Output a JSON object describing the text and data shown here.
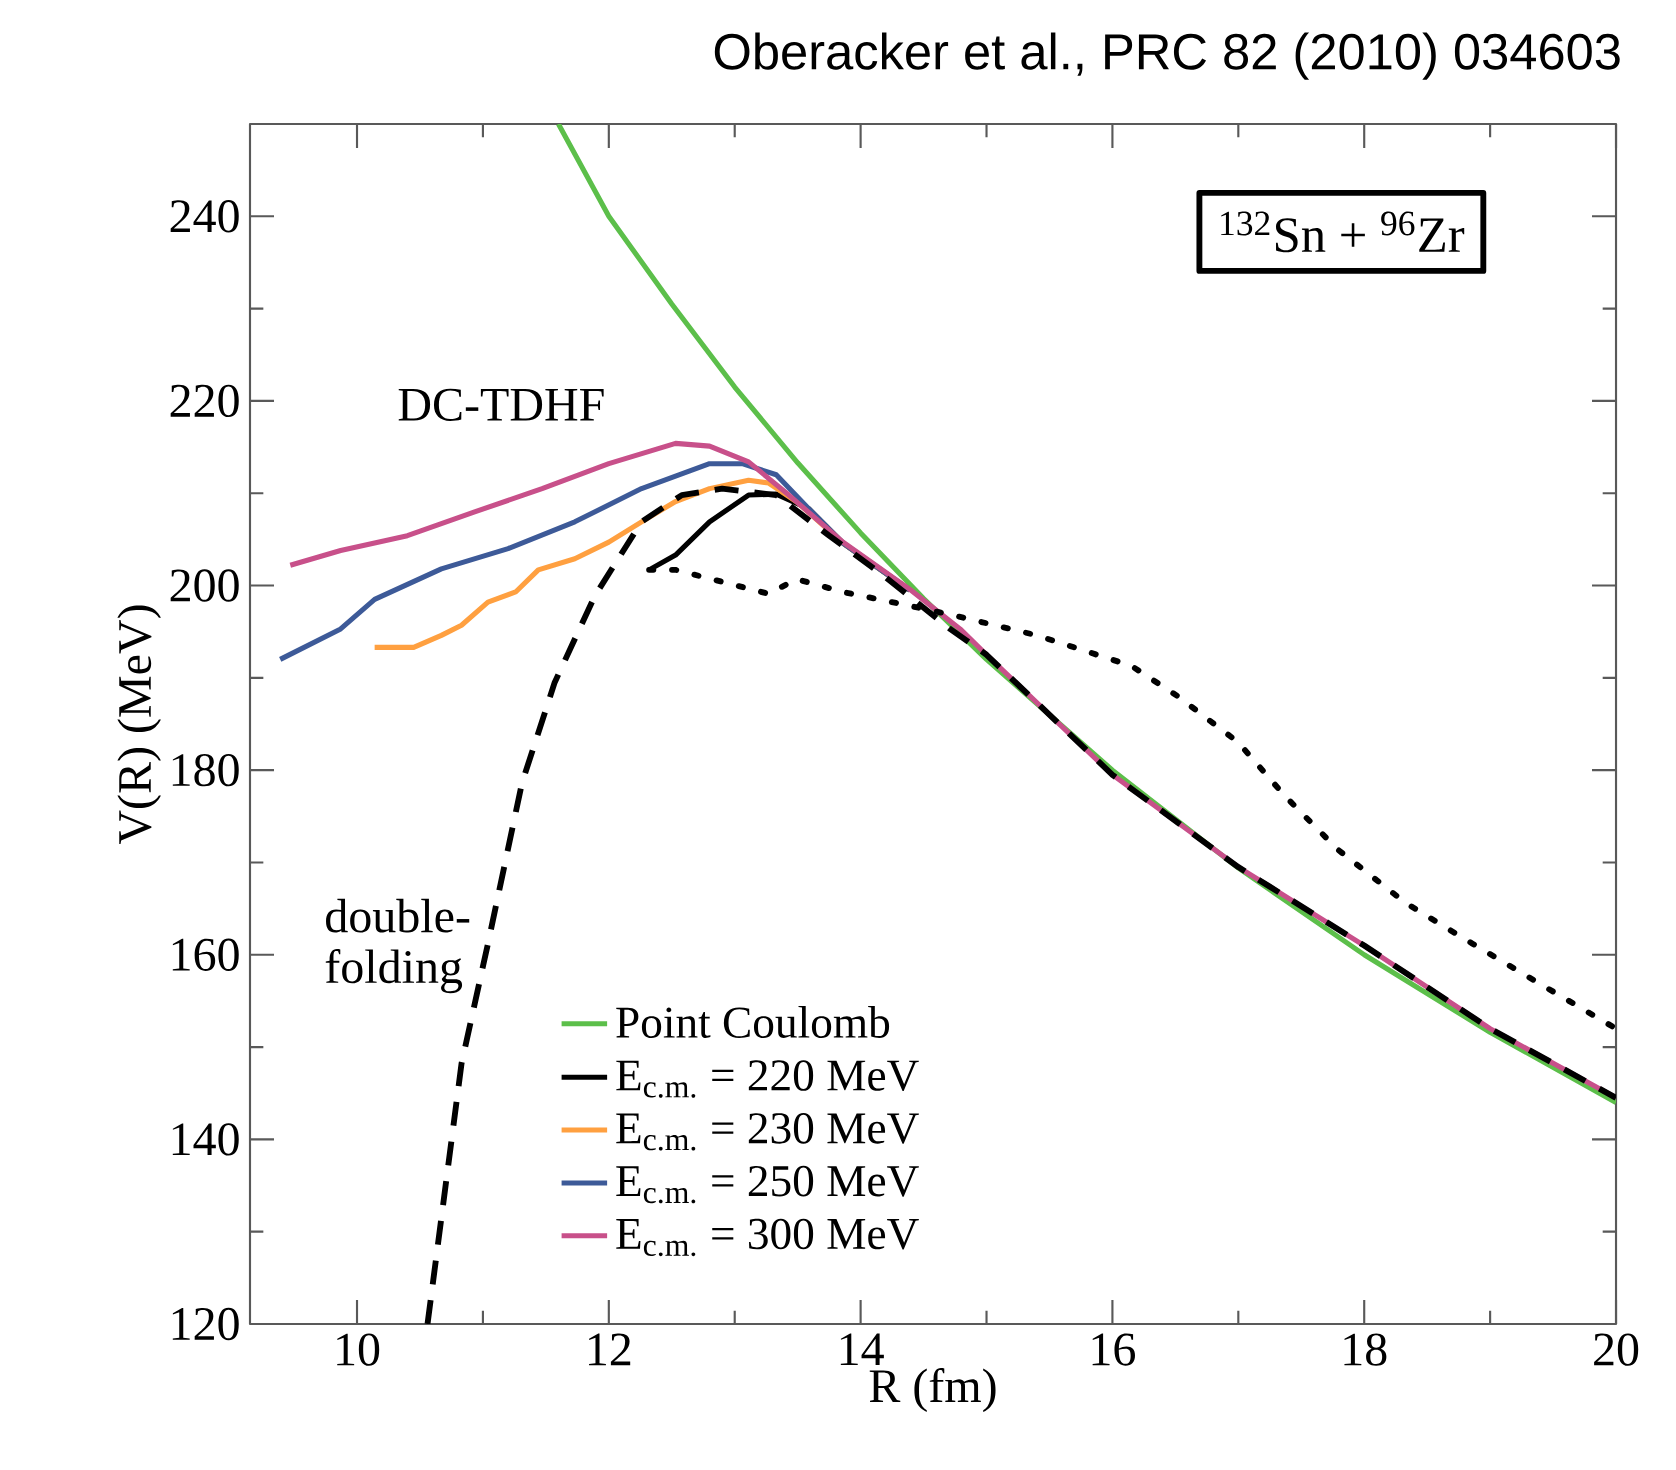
{
  "chart_data": {
    "type": "line",
    "title": "Oberacker et al., PRC 82 (2010) 034603",
    "xlabel": "R (fm)",
    "ylabel": "V(R) (MeV)",
    "xlim": [
      9.15,
      20
    ],
    "ylim": [
      120,
      250
    ],
    "xticks": [
      10,
      {
        "value": 11,
        "label": null
      },
      12,
      {
        "value": 13,
        "label": null
      },
      14,
      {
        "value": 15,
        "label": null
      },
      16,
      {
        "value": 17,
        "label": null
      },
      18,
      {
        "value": 19,
        "label": null
      },
      20
    ],
    "yticks": [
      120,
      {
        "value": 130,
        "label": null
      },
      140,
      {
        "value": 150,
        "label": null
      },
      160,
      {
        "value": 170,
        "label": null
      },
      180,
      {
        "value": 190,
        "label": null
      },
      200,
      {
        "value": 210,
        "label": null
      },
      220,
      {
        "value": 230,
        "label": null
      },
      240
    ],
    "grid": false,
    "legend": "bottom",
    "marker": "none",
    "annotations": [
      "$^{132}$Sn + $^{96}$Zr",
      "DC-TDHF",
      "double-folding"
    ],
    "series": [
      {
        "name": "Point Coulomb",
        "color": "#5cbf4a",
        "line_style": "solid",
        "x": [
          11.6,
          12,
          12.5,
          13,
          13.5,
          14,
          14.5,
          15,
          16,
          17,
          18,
          19,
          20
        ],
        "values": [
          250,
          240,
          230.5,
          221.5,
          213.3,
          205.7,
          198.6,
          192,
          180,
          169.4,
          160,
          151.6,
          144
        ]
      },
      {
        "name": "E$_{c.m.}$ = 220 MeV",
        "color": "#000000",
        "line_style": "solid",
        "x": [
          12.32,
          12.53,
          12.8,
          13.11,
          13.33,
          13.59,
          13.86,
          14.39
        ],
        "values": [
          201.7,
          203.3,
          206.9,
          209.8,
          209.9,
          208.3,
          204.6,
          199.5
        ]
      },
      {
        "name": "E$_{c.m.}$ = 230 MeV",
        "color": "#ffa040",
        "line_style": "solid",
        "x": [
          10.14,
          10.45,
          10.67,
          10.83,
          11.04,
          11.26,
          11.44,
          11.73,
          12,
          12.26,
          12.53,
          12.8,
          13.11,
          13.27,
          13.49,
          13.86,
          14.39
        ],
        "values": [
          193.3,
          193.3,
          194.6,
          195.7,
          198.2,
          199.3,
          201.7,
          202.9,
          204.7,
          206.9,
          209.1,
          210.5,
          211.4,
          211.1,
          209.1,
          204.6,
          199.5
        ]
      },
      {
        "name": "E$_{c.m.}$ = 250 MeV",
        "color": "#3d5a98",
        "line_style": "solid",
        "x": [
          9.39,
          9.87,
          10.14,
          10.67,
          11.2,
          11.73,
          12.26,
          12.8,
          13.06,
          13.33,
          13.59,
          13.86,
          14.39
        ],
        "values": [
          192,
          195.3,
          198.5,
          201.8,
          204,
          206.9,
          210.5,
          213.2,
          213.2,
          212,
          208.3,
          204.6,
          199.5
        ]
      },
      {
        "name": "E$_{c.m.}$ = 300 MeV",
        "color": "#c8508a",
        "line_style": "solid",
        "x": [
          9.47,
          9.87,
          10.4,
          10.94,
          11.47,
          12,
          12.53,
          12.8,
          13.11,
          13.43,
          13.86,
          14.39,
          14.79,
          15,
          16,
          17,
          18,
          19,
          20
        ],
        "values": [
          202.2,
          203.8,
          205.4,
          208,
          210.5,
          213.2,
          215.4,
          215.1,
          213.4,
          209.8,
          204.7,
          199.6,
          195.3,
          192.5,
          179.5,
          169.5,
          161,
          152,
          144.5
        ]
      },
      {
        "color": "#000000",
        "line_style": "dashed",
        "x": [
          10.56,
          10.83,
          11.04,
          11.31,
          11.57,
          11.89,
          12.26,
          12.58,
          12.9,
          13.33,
          13.75,
          14.18,
          14.71,
          15,
          16,
          17,
          18,
          19,
          20
        ],
        "values": [
          120,
          148.2,
          161.2,
          178.6,
          189.5,
          198.9,
          206.9,
          209.8,
          210.5,
          209.8,
          205.4,
          201.1,
          195.3,
          192.5,
          179.5,
          169.5,
          161,
          152,
          144.5
        ]
      },
      {
        "color": "#000000",
        "line_style": "dotted",
        "x": [
          12.32,
          12.53,
          12.9,
          13.27,
          13.49,
          13.86,
          14.39,
          14.76,
          15.4,
          16.15,
          16.52,
          17,
          17.37,
          17.79,
          18.33,
          18.86,
          19.39,
          20
        ],
        "values": [
          201.7,
          201.7,
          200.4,
          199.1,
          200.7,
          199.3,
          197.8,
          196.7,
          194.6,
          191.3,
          188,
          183,
          177.2,
          171.4,
          165.6,
          161.2,
          156.9,
          152
        ]
      }
    ]
  }
}
